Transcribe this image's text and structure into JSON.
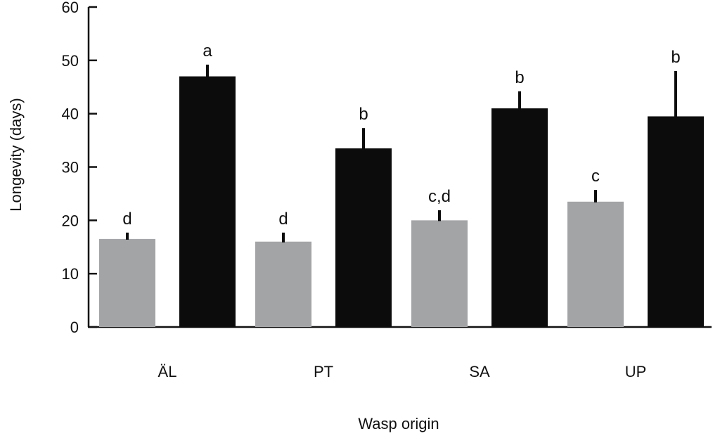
{
  "chart_data": {
    "type": "bar",
    "title": "",
    "xlabel": "Wasp origin",
    "ylabel": "Longevity (days)",
    "ylim": [
      0,
      60
    ],
    "yticks": [
      0,
      10,
      20,
      30,
      40,
      50,
      60
    ],
    "categories": [
      "ÄL",
      "PT",
      "SA",
      "UP"
    ],
    "grid": false,
    "legend": "none",
    "series": [
      {
        "color": "#a3a4a6",
        "values": [
          16.5,
          16,
          20,
          23.5
        ],
        "error": [
          1.2,
          1.7,
          1.9,
          2.2
        ],
        "letters": [
          "d",
          "d",
          "c,d",
          "c"
        ]
      },
      {
        "color": "#0c0c0c",
        "values": [
          47,
          33.5,
          41,
          39.5
        ],
        "error": [
          2.2,
          3.8,
          3.2,
          8.5
        ],
        "letters": [
          "a",
          "b",
          "b",
          "b"
        ]
      }
    ]
  }
}
